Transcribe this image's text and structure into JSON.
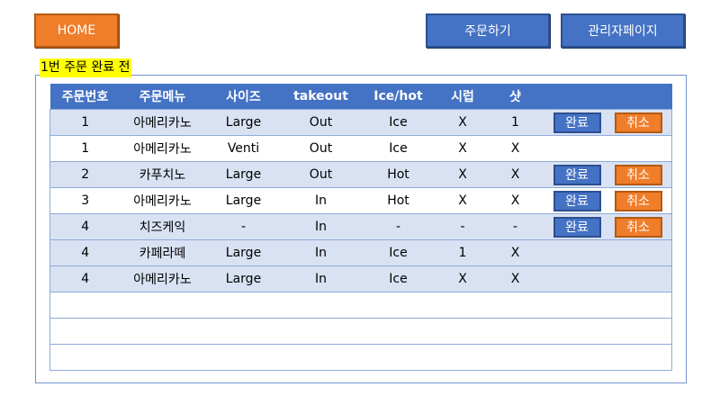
{
  "nav": {
    "home": "HOME",
    "order": "주문하기",
    "admin": "관리자페이지"
  },
  "section_label": "1번 주문 완료 전",
  "table": {
    "headers": [
      "주문번호",
      "주문메뉴",
      "사이즈",
      "takeout",
      "Ice/hot",
      "시럽",
      "샷"
    ],
    "rows": [
      {
        "no": "1",
        "menu": "아메리카노",
        "size": "Large",
        "takeout": "Out",
        "icehot": "Ice",
        "syrup": "X",
        "shot": "1",
        "actions": true,
        "shade": "alt"
      },
      {
        "no": "1",
        "menu": "아메리카노",
        "size": "Venti",
        "takeout": "Out",
        "icehot": "Ice",
        "syrup": "X",
        "shot": "X",
        "actions": false,
        "shade": "plain"
      },
      {
        "no": "2",
        "menu": "카푸치노",
        "size": "Large",
        "takeout": "Out",
        "icehot": "Hot",
        "syrup": "X",
        "shot": "X",
        "actions": true,
        "shade": "alt"
      },
      {
        "no": "3",
        "menu": "아메리카노",
        "size": "Large",
        "takeout": "In",
        "icehot": "Hot",
        "syrup": "X",
        "shot": "X",
        "actions": true,
        "shade": "plain"
      },
      {
        "no": "4",
        "menu": "치즈케익",
        "size": "-",
        "takeout": "In",
        "icehot": "-",
        "syrup": "-",
        "shot": "-",
        "actions": true,
        "shade": "alt"
      },
      {
        "no": "4",
        "menu": "카페라떼",
        "size": "Large",
        "takeout": "In",
        "icehot": "Ice",
        "syrup": "1",
        "shot": "X",
        "actions": false,
        "shade": "alt"
      },
      {
        "no": "4",
        "menu": "아메리카노",
        "size": "Large",
        "takeout": "In",
        "icehot": "Ice",
        "syrup": "X",
        "shot": "X",
        "actions": false,
        "shade": "alt"
      }
    ],
    "empty_rows": 3
  },
  "actions": {
    "done": "완료",
    "cancel": "취소"
  },
  "colors": {
    "accent_blue": "#4472c4",
    "accent_orange": "#f07d2a",
    "highlight_yellow": "#ffff00",
    "row_alt": "#d9e2f3"
  }
}
